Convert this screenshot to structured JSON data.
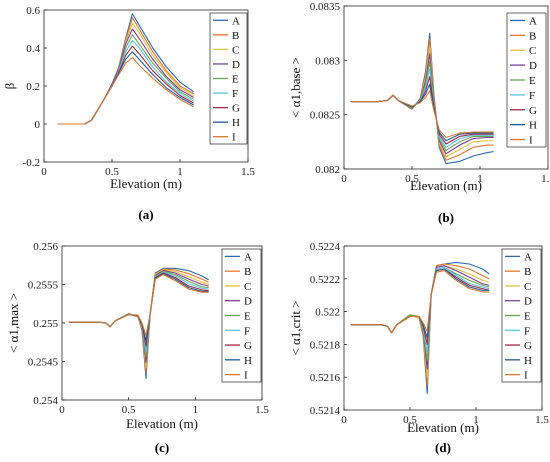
{
  "series_names": [
    "A",
    "B",
    "C",
    "D",
    "E",
    "F",
    "G",
    "H",
    "I"
  ],
  "series_colors": [
    "#2b6ab5",
    "#e8742a",
    "#e4c13a",
    "#7f3f98",
    "#6aa84f",
    "#56c5e8",
    "#a32a43",
    "#1f5b99",
    "#d9772e"
  ],
  "chart_data": [
    {
      "type": "line",
      "caption": "(a)",
      "xlabel": "Elevation (m)",
      "ylabel": "β",
      "xlim": [
        0,
        1.5
      ],
      "ylim": [
        -0.2,
        0.6
      ],
      "xticks": [
        "0",
        "0.5",
        "1",
        "1.5"
      ],
      "yticks": [
        "-0.2",
        "0",
        "0.2",
        "0.4",
        "0.6"
      ],
      "x": [
        0.1,
        0.3,
        0.35,
        0.4,
        0.45,
        0.5,
        0.55,
        0.6,
        0.65,
        0.7,
        0.8,
        0.9,
        1.0,
        1.1
      ],
      "series": [
        {
          "name": "A",
          "values": [
            0,
            0,
            0.02,
            0.08,
            0.14,
            0.21,
            0.3,
            0.45,
            0.58,
            0.52,
            0.4,
            0.3,
            0.22,
            0.17
          ]
        },
        {
          "name": "B",
          "values": [
            0,
            0,
            0.02,
            0.08,
            0.14,
            0.21,
            0.3,
            0.44,
            0.56,
            0.5,
            0.38,
            0.28,
            0.2,
            0.16
          ]
        },
        {
          "name": "C",
          "values": [
            0,
            0,
            0.02,
            0.08,
            0.14,
            0.21,
            0.29,
            0.43,
            0.53,
            0.48,
            0.36,
            0.27,
            0.19,
            0.15
          ]
        },
        {
          "name": "D",
          "values": [
            0,
            0,
            0.02,
            0.08,
            0.14,
            0.21,
            0.29,
            0.42,
            0.5,
            0.45,
            0.34,
            0.25,
            0.18,
            0.14
          ]
        },
        {
          "name": "E",
          "values": [
            0,
            0,
            0.02,
            0.08,
            0.14,
            0.2,
            0.28,
            0.4,
            0.47,
            0.42,
            0.32,
            0.24,
            0.17,
            0.13
          ]
        },
        {
          "name": "F",
          "values": [
            0,
            0,
            0.02,
            0.08,
            0.14,
            0.2,
            0.28,
            0.38,
            0.44,
            0.4,
            0.3,
            0.22,
            0.16,
            0.12
          ]
        },
        {
          "name": "G",
          "values": [
            0,
            0,
            0.02,
            0.08,
            0.14,
            0.2,
            0.27,
            0.36,
            0.41,
            0.37,
            0.28,
            0.21,
            0.15,
            0.11
          ]
        },
        {
          "name": "H",
          "values": [
            0,
            0,
            0.02,
            0.08,
            0.14,
            0.2,
            0.27,
            0.34,
            0.38,
            0.34,
            0.26,
            0.19,
            0.14,
            0.1
          ]
        },
        {
          "name": "I",
          "values": [
            0,
            0,
            0.02,
            0.08,
            0.14,
            0.2,
            0.26,
            0.32,
            0.35,
            0.31,
            0.24,
            0.18,
            0.13,
            0.09
          ]
        }
      ]
    },
    {
      "type": "line",
      "caption": "(b)",
      "xlabel": "Elevation (m)",
      "ylabel": "< α1,base >",
      "xlim": [
        0,
        1.5
      ],
      "ylim": [
        0.082,
        0.0835
      ],
      "xticks": [
        "0",
        "0.5",
        "1",
        "1.5"
      ],
      "yticks": [
        "0.082",
        "0.0825",
        "0.083",
        "0.0835"
      ],
      "x": [
        0.05,
        0.25,
        0.32,
        0.36,
        0.4,
        0.5,
        0.56,
        0.6,
        0.63,
        0.66,
        0.7,
        0.75,
        0.85,
        0.95,
        1.05,
        1.1
      ],
      "series": [
        {
          "name": "A",
          "values": [
            0.08262,
            0.08262,
            0.08263,
            0.08268,
            0.08263,
            0.08255,
            0.08265,
            0.0829,
            0.08325,
            0.0827,
            0.0822,
            0.08205,
            0.08207,
            0.08212,
            0.08215,
            0.08216
          ]
        },
        {
          "name": "B",
          "values": [
            0.08262,
            0.08262,
            0.08263,
            0.08268,
            0.08263,
            0.08255,
            0.08265,
            0.08287,
            0.0832,
            0.08268,
            0.08222,
            0.08208,
            0.08213,
            0.0822,
            0.08222,
            0.08222
          ]
        },
        {
          "name": "C",
          "values": [
            0.08262,
            0.08262,
            0.08263,
            0.08268,
            0.08263,
            0.08256,
            0.08264,
            0.08284,
            0.08313,
            0.08266,
            0.08224,
            0.08211,
            0.08218,
            0.08225,
            0.08226,
            0.08226
          ]
        },
        {
          "name": "D",
          "values": [
            0.08262,
            0.08262,
            0.08263,
            0.08268,
            0.08263,
            0.08256,
            0.08264,
            0.08281,
            0.08306,
            0.08264,
            0.08226,
            0.08214,
            0.08222,
            0.08228,
            0.08229,
            0.08229
          ]
        },
        {
          "name": "E",
          "values": [
            0.08262,
            0.08262,
            0.08263,
            0.08268,
            0.08263,
            0.08256,
            0.08263,
            0.08278,
            0.08299,
            0.08262,
            0.08228,
            0.08217,
            0.08225,
            0.0823,
            0.0823,
            0.0823
          ]
        },
        {
          "name": "F",
          "values": [
            0.08262,
            0.08262,
            0.08263,
            0.08268,
            0.08263,
            0.08257,
            0.08263,
            0.08275,
            0.08292,
            0.0826,
            0.0823,
            0.0822,
            0.08228,
            0.08231,
            0.08231,
            0.08231
          ]
        },
        {
          "name": "G",
          "values": [
            0.08262,
            0.08262,
            0.08263,
            0.08268,
            0.08263,
            0.08257,
            0.08262,
            0.08272,
            0.08285,
            0.08258,
            0.08232,
            0.08223,
            0.0823,
            0.08232,
            0.08232,
            0.08232
          ]
        },
        {
          "name": "H",
          "values": [
            0.08262,
            0.08262,
            0.08263,
            0.08268,
            0.08263,
            0.08257,
            0.08262,
            0.08269,
            0.08278,
            0.08256,
            0.08234,
            0.08226,
            0.08232,
            0.08233,
            0.08233,
            0.08233
          ]
        },
        {
          "name": "I",
          "values": [
            0.08262,
            0.08262,
            0.08263,
            0.08268,
            0.08263,
            0.08258,
            0.08261,
            0.08266,
            0.08272,
            0.08254,
            0.08236,
            0.08229,
            0.08233,
            0.08234,
            0.08234,
            0.08234
          ]
        }
      ]
    },
    {
      "type": "line",
      "caption": "(c)",
      "xlabel": "Elevation (m)",
      "ylabel": "< α1,max >",
      "xlim": [
        0,
        1.5
      ],
      "ylim": [
        0.254,
        0.256
      ],
      "xticks": [
        "0",
        "0.5",
        "1",
        "1.5"
      ],
      "yticks": [
        "0.254",
        "0.2545",
        "0.255",
        "0.2555",
        "0.256"
      ],
      "x": [
        0.05,
        0.28,
        0.33,
        0.36,
        0.4,
        0.5,
        0.57,
        0.6,
        0.63,
        0.66,
        0.7,
        0.76,
        0.85,
        0.95,
        1.05,
        1.1
      ],
      "series": [
        {
          "name": "A",
          "values": [
            0.25501,
            0.25501,
            0.255,
            0.25495,
            0.25503,
            0.25512,
            0.25508,
            0.2549,
            0.25428,
            0.2551,
            0.25565,
            0.25571,
            0.25571,
            0.25568,
            0.25561,
            0.25556
          ]
        },
        {
          "name": "B",
          "values": [
            0.25501,
            0.25501,
            0.255,
            0.25495,
            0.25503,
            0.25512,
            0.25508,
            0.25492,
            0.25435,
            0.2551,
            0.25564,
            0.2557,
            0.25569,
            0.25564,
            0.25557,
            0.25553
          ]
        },
        {
          "name": "C",
          "values": [
            0.25501,
            0.25501,
            0.255,
            0.25495,
            0.25503,
            0.25512,
            0.25508,
            0.25493,
            0.25442,
            0.2551,
            0.25563,
            0.25569,
            0.25567,
            0.2556,
            0.25553,
            0.2555
          ]
        },
        {
          "name": "D",
          "values": [
            0.25501,
            0.25501,
            0.255,
            0.25495,
            0.25503,
            0.25512,
            0.25509,
            0.25495,
            0.25449,
            0.2551,
            0.25562,
            0.25568,
            0.25565,
            0.25557,
            0.2555,
            0.25548
          ]
        },
        {
          "name": "E",
          "values": [
            0.25501,
            0.25501,
            0.255,
            0.25495,
            0.25503,
            0.25512,
            0.25509,
            0.25496,
            0.25456,
            0.2551,
            0.25561,
            0.25567,
            0.25563,
            0.25554,
            0.25547,
            0.25546
          ]
        },
        {
          "name": "F",
          "values": [
            0.25501,
            0.25501,
            0.255,
            0.25495,
            0.25503,
            0.25511,
            0.25509,
            0.25497,
            0.25463,
            0.2551,
            0.2556,
            0.25566,
            0.25561,
            0.25551,
            0.25545,
            0.25544
          ]
        },
        {
          "name": "G",
          "values": [
            0.25501,
            0.25501,
            0.255,
            0.25495,
            0.25503,
            0.25511,
            0.25509,
            0.25498,
            0.2547,
            0.2551,
            0.25559,
            0.25565,
            0.25559,
            0.25548,
            0.25543,
            0.25542
          ]
        },
        {
          "name": "H",
          "values": [
            0.25501,
            0.25501,
            0.255,
            0.25495,
            0.25503,
            0.25511,
            0.2551,
            0.25499,
            0.25477,
            0.2551,
            0.25558,
            0.25564,
            0.25557,
            0.25546,
            0.25541,
            0.25541
          ]
        },
        {
          "name": "I",
          "values": [
            0.25501,
            0.25501,
            0.255,
            0.25495,
            0.25503,
            0.25511,
            0.2551,
            0.255,
            0.25484,
            0.2551,
            0.25557,
            0.25563,
            0.25555,
            0.25544,
            0.2554,
            0.2554
          ]
        }
      ]
    },
    {
      "type": "line",
      "caption": "(d)",
      "xlabel": "Elevation (m)",
      "ylabel": "< α1,crit >",
      "xlim": [
        0,
        1.5
      ],
      "ylim": [
        0.5214,
        0.5224
      ],
      "xticks": [
        "0",
        "0.5",
        "1",
        "1.5"
      ],
      "yticks": [
        "0.5214",
        "0.5216",
        "0.5218",
        "0.522",
        "0.5222",
        "0.5224"
      ],
      "x": [
        0.05,
        0.28,
        0.33,
        0.36,
        0.4,
        0.5,
        0.57,
        0.6,
        0.63,
        0.66,
        0.7,
        0.76,
        0.85,
        0.95,
        1.05,
        1.1
      ],
      "series": [
        {
          "name": "A",
          "values": [
            0.52192,
            0.52192,
            0.52191,
            0.52187,
            0.52192,
            0.52198,
            0.52196,
            0.52185,
            0.5215,
            0.5221,
            0.52228,
            0.52229,
            0.5223,
            0.52229,
            0.52226,
            0.52223
          ]
        },
        {
          "name": "B",
          "values": [
            0.52192,
            0.52192,
            0.52191,
            0.52187,
            0.52192,
            0.52198,
            0.52196,
            0.52186,
            0.52155,
            0.5221,
            0.52228,
            0.52229,
            0.52228,
            0.52226,
            0.52222,
            0.5222
          ]
        },
        {
          "name": "C",
          "values": [
            0.52192,
            0.52192,
            0.52191,
            0.52187,
            0.52192,
            0.52198,
            0.52196,
            0.52187,
            0.5216,
            0.5221,
            0.52227,
            0.52228,
            0.52226,
            0.52223,
            0.52219,
            0.52218
          ]
        },
        {
          "name": "D",
          "values": [
            0.52192,
            0.52192,
            0.52191,
            0.52187,
            0.52192,
            0.52198,
            0.52197,
            0.52188,
            0.52165,
            0.5221,
            0.52227,
            0.52228,
            0.52225,
            0.52221,
            0.52217,
            0.52216
          ]
        },
        {
          "name": "E",
          "values": [
            0.52192,
            0.52192,
            0.52191,
            0.52187,
            0.52192,
            0.52198,
            0.52197,
            0.52189,
            0.5217,
            0.5221,
            0.52226,
            0.52227,
            0.52223,
            0.52219,
            0.52216,
            0.52215
          ]
        },
        {
          "name": "F",
          "values": [
            0.52192,
            0.52192,
            0.52191,
            0.52187,
            0.52192,
            0.52197,
            0.52197,
            0.5219,
            0.52175,
            0.5221,
            0.52226,
            0.52227,
            0.52222,
            0.52217,
            0.52215,
            0.52214
          ]
        },
        {
          "name": "G",
          "values": [
            0.52192,
            0.52192,
            0.52191,
            0.52187,
            0.52192,
            0.52197,
            0.52197,
            0.52191,
            0.5218,
            0.5221,
            0.52225,
            0.52226,
            0.52221,
            0.52216,
            0.52214,
            0.52213
          ]
        },
        {
          "name": "H",
          "values": [
            0.52192,
            0.52192,
            0.52191,
            0.52187,
            0.52192,
            0.52197,
            0.52197,
            0.52192,
            0.52184,
            0.5221,
            0.52225,
            0.52226,
            0.5222,
            0.52215,
            0.52213,
            0.52213
          ]
        },
        {
          "name": "I",
          "values": [
            0.52192,
            0.52192,
            0.52191,
            0.52187,
            0.52192,
            0.52197,
            0.52197,
            0.52193,
            0.52188,
            0.5221,
            0.52224,
            0.52225,
            0.52219,
            0.52214,
            0.52212,
            0.52212
          ]
        }
      ]
    }
  ]
}
